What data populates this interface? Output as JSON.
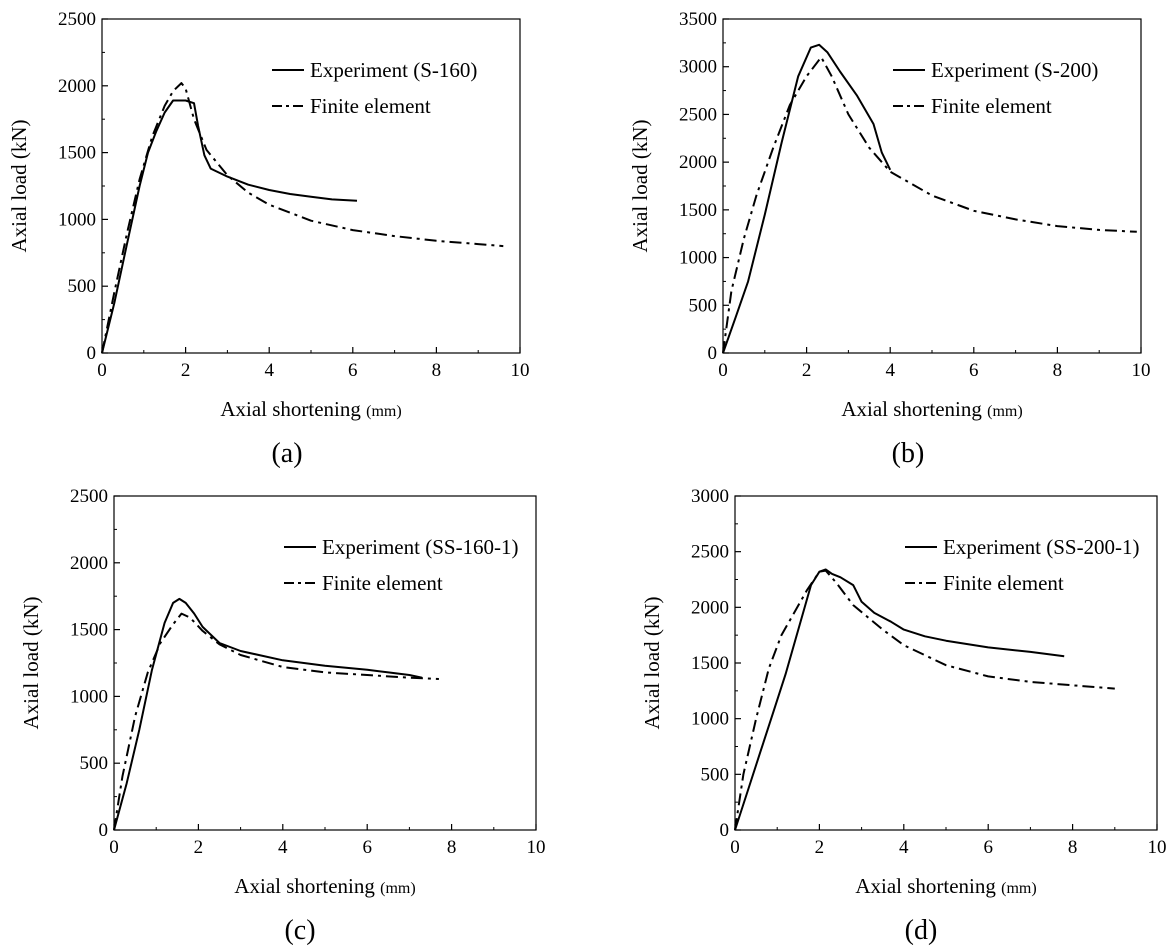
{
  "chart_data": [
    {
      "type": "line",
      "caption": "(a)",
      "xlabel": "Axial shortening",
      "xlabel_unit": "(mm)",
      "ylabel": "Axial load (kN)",
      "xlim": [
        0,
        10
      ],
      "ylim": [
        0,
        2500
      ],
      "xticks": [
        0,
        2,
        4,
        6,
        8,
        10
      ],
      "yticks": [
        0,
        500,
        1000,
        1500,
        2000,
        2500
      ],
      "legend_position": "top-right",
      "grid": false,
      "series": [
        {
          "name": "Experiment (S-160)",
          "style": "solid",
          "x": [
            0,
            0.3,
            0.6,
            0.9,
            1.1,
            1.3,
            1.5,
            1.7,
            2.0,
            2.2,
            2.3,
            2.45,
            2.6,
            3.0,
            3.5,
            4.0,
            4.5,
            5.0,
            5.5,
            6.1
          ],
          "y": [
            0,
            380,
            820,
            1250,
            1500,
            1660,
            1800,
            1890,
            1890,
            1870,
            1700,
            1480,
            1380,
            1320,
            1260,
            1220,
            1190,
            1170,
            1150,
            1140
          ]
        },
        {
          "name": "Finite element",
          "style": "dashdot",
          "x": [
            0,
            0.3,
            0.6,
            0.9,
            1.2,
            1.5,
            1.7,
            1.9,
            2.0,
            2.2,
            2.5,
            3.0,
            3.5,
            4.0,
            5.0,
            6.0,
            7.0,
            8.0,
            9.0,
            9.6
          ],
          "y": [
            0,
            460,
            900,
            1300,
            1620,
            1850,
            1960,
            2020,
            1980,
            1750,
            1520,
            1330,
            1200,
            1110,
            990,
            920,
            875,
            840,
            815,
            800
          ]
        }
      ]
    },
    {
      "type": "line",
      "caption": "(b)",
      "xlabel": "Axial shortening",
      "xlabel_unit": "(mm)",
      "ylabel": "Axial load (kN)",
      "xlim": [
        0,
        10
      ],
      "ylim": [
        0,
        3500
      ],
      "xticks": [
        0,
        2,
        4,
        6,
        8,
        10
      ],
      "yticks": [
        0,
        500,
        1000,
        1500,
        2000,
        2500,
        3000,
        3500
      ],
      "legend_position": "top-right",
      "grid": false,
      "series": [
        {
          "name": "Experiment (S-200)",
          "style": "solid",
          "x": [
            0,
            0.3,
            0.6,
            1.0,
            1.4,
            1.8,
            2.1,
            2.3,
            2.5,
            2.8,
            3.2,
            3.6,
            3.8,
            4.0
          ],
          "y": [
            0,
            370,
            750,
            1450,
            2200,
            2900,
            3200,
            3230,
            3150,
            2950,
            2700,
            2400,
            2100,
            1920
          ]
        },
        {
          "name": "Finite element",
          "style": "dashdot",
          "x": [
            0,
            0.2,
            0.5,
            0.8,
            1.2,
            1.6,
            2.0,
            2.35,
            2.6,
            3.0,
            3.5,
            4.0,
            5.0,
            6.0,
            7.0,
            8.0,
            9.0,
            9.9
          ],
          "y": [
            0,
            650,
            1200,
            1650,
            2150,
            2600,
            2900,
            3100,
            2900,
            2500,
            2150,
            1900,
            1650,
            1490,
            1400,
            1330,
            1290,
            1270
          ]
        }
      ]
    },
    {
      "type": "line",
      "caption": "(c)",
      "xlabel": "Axial shortening",
      "xlabel_unit": "(mm)",
      "ylabel": "Axial load (kN)",
      "xlim": [
        0,
        10
      ],
      "ylim": [
        0,
        2500
      ],
      "xticks": [
        0,
        2,
        4,
        6,
        8,
        10
      ],
      "yticks": [
        0,
        500,
        1000,
        1500,
        2000,
        2500
      ],
      "legend_position": "top-right",
      "grid": false,
      "series": [
        {
          "name": "Experiment (SS-160-1)",
          "style": "solid",
          "x": [
            0,
            0.3,
            0.6,
            0.9,
            1.2,
            1.4,
            1.55,
            1.7,
            1.9,
            2.1,
            2.5,
            3.0,
            4.0,
            5.0,
            6.0,
            6.5,
            7.0,
            7.3
          ],
          "y": [
            0,
            350,
            750,
            1200,
            1550,
            1700,
            1730,
            1700,
            1620,
            1520,
            1400,
            1340,
            1270,
            1230,
            1200,
            1180,
            1160,
            1140
          ]
        },
        {
          "name": "Finite element",
          "style": "dashdot",
          "x": [
            0,
            0.2,
            0.5,
            0.8,
            1.1,
            1.4,
            1.6,
            1.8,
            2.1,
            2.5,
            3.0,
            4.0,
            5.0,
            6.0,
            7.0,
            7.7
          ],
          "y": [
            0,
            400,
            850,
            1180,
            1400,
            1540,
            1620,
            1590,
            1490,
            1390,
            1310,
            1220,
            1180,
            1160,
            1140,
            1130
          ]
        }
      ]
    },
    {
      "type": "line",
      "caption": "(d)",
      "xlabel": "Axial shortening",
      "xlabel_unit": "(mm)",
      "ylabel": "Axial load (kN)",
      "xlim": [
        0,
        10
      ],
      "ylim": [
        0,
        3000
      ],
      "xticks": [
        0,
        2,
        4,
        6,
        8,
        10
      ],
      "yticks": [
        0,
        500,
        1000,
        1500,
        2000,
        2500,
        3000
      ],
      "legend_position": "top-right",
      "grid": false,
      "series": [
        {
          "name": "Experiment (SS-200-1)",
          "style": "solid",
          "x": [
            0,
            0.3,
            0.6,
            0.9,
            1.2,
            1.5,
            1.8,
            2.0,
            2.15,
            2.3,
            2.5,
            2.8,
            3.0,
            3.3,
            3.7,
            4.0,
            4.5,
            5.0,
            6.0,
            7.0,
            7.8
          ],
          "y": [
            0,
            350,
            700,
            1050,
            1400,
            1800,
            2200,
            2320,
            2340,
            2300,
            2270,
            2200,
            2050,
            1950,
            1870,
            1800,
            1740,
            1700,
            1640,
            1600,
            1560
          ]
        },
        {
          "name": "Finite element",
          "style": "dashdot",
          "x": [
            0,
            0.2,
            0.5,
            0.8,
            1.1,
            1.4,
            1.7,
            2.0,
            2.15,
            2.4,
            2.8,
            3.5,
            4.0,
            5.0,
            6.0,
            7.0,
            8.0,
            9.0
          ],
          "y": [
            0,
            500,
            1000,
            1450,
            1750,
            1950,
            2150,
            2320,
            2330,
            2220,
            2020,
            1800,
            1660,
            1480,
            1380,
            1330,
            1300,
            1270
          ]
        }
      ]
    }
  ]
}
